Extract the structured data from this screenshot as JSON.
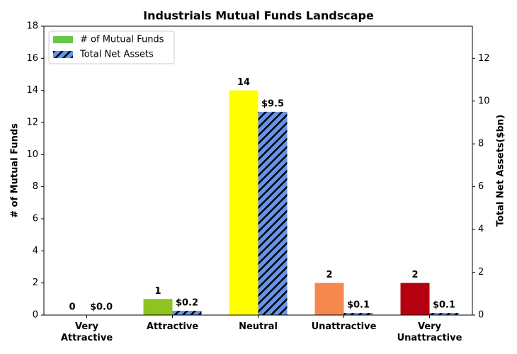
{
  "chart_data": {
    "type": "bar",
    "title": "Industrials Mutual Funds Landscape",
    "categories": [
      "Very\nAttractive",
      "Attractive",
      "Neutral",
      "Unattractive",
      "Very\nUnattractive"
    ],
    "series": [
      {
        "name": "# of Mutual Funds",
        "color": "#66c94c",
        "colors": [
          "#1e9e1e",
          "#8fc31f",
          "#ffff00",
          "#f4884e",
          "#b5000f"
        ],
        "values": [
          0,
          1,
          14,
          2,
          2
        ]
      },
      {
        "name": "Total Net Assets",
        "color": "#6495ed",
        "hatch": true,
        "axis": "y2",
        "values": [
          0.0,
          0.2,
          9.5,
          0.1,
          0.1
        ],
        "value_labels": [
          "$0.0",
          "$0.2",
          "$9.5",
          "$0.1",
          "$0.1"
        ]
      }
    ],
    "ylabel": "# of Mutual Funds",
    "y2label": "Total Net Assets($bn)",
    "ylim": [
      0,
      18
    ],
    "yticks": [
      0,
      2,
      4,
      6,
      8,
      10,
      12,
      14,
      16,
      18
    ],
    "y2lim": [
      0,
      13.5
    ],
    "y2ticks": [
      0,
      2,
      4,
      6,
      8,
      10,
      12
    ],
    "legend": "upper left"
  }
}
